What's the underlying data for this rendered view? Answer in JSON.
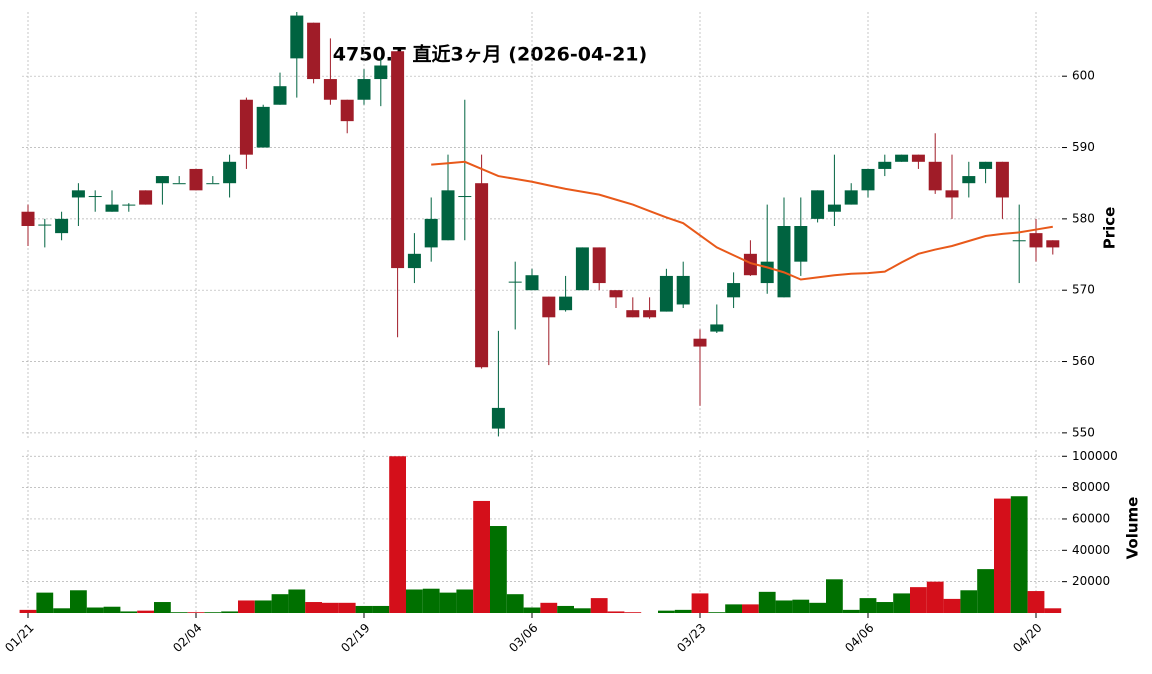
{
  "chart_data": [
    {
      "type": "candlestick",
      "title": "4750.T  直近3ヶ月 (2026-04-21)",
      "y_label": "Price",
      "categories": [
        "01/21",
        null,
        null,
        null,
        null,
        null,
        null,
        null,
        null,
        null,
        "02/04",
        null,
        null,
        null,
        null,
        null,
        null,
        null,
        null,
        null,
        "02/19",
        null,
        null,
        null,
        null,
        null,
        null,
        null,
        null,
        null,
        "03/06",
        null,
        null,
        null,
        null,
        null,
        null,
        null,
        null,
        null,
        "03/23",
        null,
        null,
        null,
        null,
        null,
        null,
        null,
        null,
        null,
        "04/06",
        null,
        null,
        null,
        null,
        null,
        null,
        null,
        null,
        null,
        "04/20",
        null
      ],
      "open": [
        581,
        579.2,
        578,
        583,
        583.2,
        581,
        582,
        584,
        585,
        585,
        587,
        585,
        585,
        596.7,
        590,
        596,
        602.5,
        607.5,
        599.6,
        596.7,
        596.7,
        599.6,
        603.5,
        573.1,
        576,
        577,
        583.2,
        585,
        550.6,
        571.2,
        570,
        569.1,
        567.2,
        570,
        576,
        570,
        567.2,
        567.2,
        567,
        568,
        563.2,
        564.2,
        569,
        575.1,
        571,
        569,
        574,
        580,
        581,
        582,
        584,
        587,
        588,
        589,
        588,
        584,
        585,
        587,
        588,
        577,
        578,
        577
      ],
      "high": [
        582,
        580,
        581,
        585,
        584,
        584,
        582.2,
        584,
        586,
        586,
        587,
        586,
        589,
        597,
        596,
        600.5,
        609,
        607.5,
        605.3,
        596.7,
        601,
        602.5,
        603.5,
        578,
        583,
        589,
        596.7,
        589,
        564.3,
        574,
        573,
        569.1,
        572,
        576,
        576,
        570,
        569,
        569,
        573,
        574,
        564.5,
        568,
        572.5,
        577,
        582,
        583,
        583,
        584,
        589,
        585,
        587,
        589,
        589,
        589,
        592,
        589,
        588,
        588,
        588,
        582,
        580,
        577
      ],
      "low": [
        576.2,
        576,
        577,
        579,
        581,
        581,
        581,
        582,
        582,
        585,
        584,
        585,
        583,
        587,
        590,
        596,
        597,
        599,
        596,
        592,
        596,
        595.8,
        563.4,
        571,
        574,
        577,
        577,
        559,
        549.5,
        564.5,
        570,
        559.5,
        567,
        570,
        570,
        567.5,
        566.2,
        566,
        567,
        567.5,
        553.8,
        564,
        567.5,
        572,
        569.5,
        569,
        572,
        579.5,
        579,
        582,
        583,
        586,
        588,
        587,
        583.5,
        580,
        583,
        585,
        580,
        571,
        574,
        575
      ],
      "close": [
        579,
        579.2,
        580,
        584,
        583.2,
        582,
        582,
        582,
        586,
        585,
        584,
        585,
        588,
        589,
        595.7,
        598.6,
        608.5,
        599.6,
        596.7,
        593.7,
        599.6,
        601.5,
        573.1,
        575.1,
        580,
        584,
        583.2,
        559.2,
        553.5,
        571.2,
        572.1,
        566.2,
        569.1,
        576,
        571,
        569,
        566.2,
        566.2,
        572,
        572,
        562.1,
        565.2,
        571,
        572.1,
        574,
        579,
        579,
        584,
        582,
        584,
        587,
        588,
        589,
        588,
        584,
        583,
        586,
        588,
        583,
        577,
        576,
        576
      ],
      "up_color": "#006340",
      "down_color": "#a01c28",
      "series": [
        {
          "color": "#e8591a",
          "values": [
            null,
            null,
            null,
            null,
            null,
            null,
            null,
            null,
            null,
            null,
            null,
            null,
            null,
            null,
            null,
            null,
            null,
            null,
            null,
            null,
            null,
            null,
            null,
            null,
            587.6,
            587.8,
            588,
            587,
            586,
            585.6,
            585.2,
            584.7,
            584.2,
            583.8,
            583.4,
            582.7,
            582,
            581.1,
            580.2,
            579.4,
            577.7,
            576,
            574.9,
            573.8,
            573.2,
            572.5,
            571.5,
            571.8,
            572.1,
            572.3,
            572.4,
            572.6,
            573.9,
            575.1,
            575.7,
            576.2,
            576.9,
            577.6,
            577.9,
            578.1,
            578.5,
            578.9
          ]
        }
      ],
      "ylim": [
        549,
        609
      ],
      "yticks": [
        550,
        560,
        570,
        580,
        590,
        600
      ],
      "grid": true
    },
    {
      "type": "bar",
      "y_label": "Volume",
      "values": [
        2000,
        13000,
        3000,
        14500,
        3500,
        4000,
        1000,
        1500,
        7000,
        500,
        500,
        500,
        1000,
        8000,
        8000,
        12000,
        15000,
        7000,
        6500,
        6500,
        4500,
        4500,
        100000,
        15000,
        15500,
        13000,
        15000,
        71500,
        55500,
        12000,
        3500,
        6500,
        4500,
        3000,
        9500,
        1000,
        500,
        null,
        1500,
        2000,
        12500,
        500,
        5500,
        5500,
        13500,
        8000,
        8500,
        6500,
        21500,
        2000,
        9500,
        7000,
        12500,
        16500,
        20000,
        9000,
        14500,
        28000,
        73000,
        74500,
        14000,
        3000
      ],
      "up_color": "#007000",
      "down_color": "#d40f1a",
      "ylim": [
        0,
        104000
      ],
      "yticks": [
        20000,
        40000,
        60000,
        80000,
        100000
      ],
      "grid": true
    }
  ]
}
